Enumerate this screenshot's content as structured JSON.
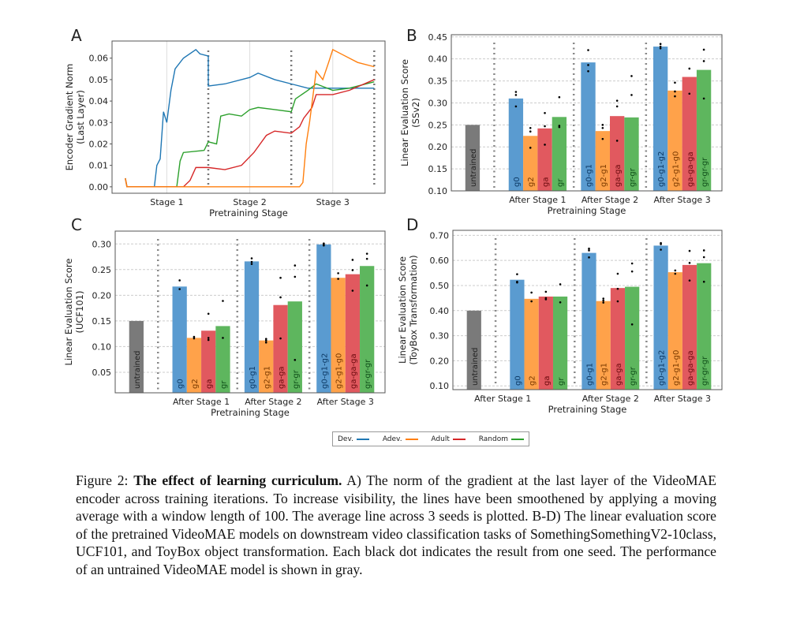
{
  "colors": {
    "line_blue": "#1f77b4",
    "line_orange": "#ff7f0e",
    "line_red": "#d62728",
    "line_green": "#2ca02c",
    "bar_blue": "#5a9bd0",
    "bar_orange": "#ffa24a",
    "bar_red": "#e1595f",
    "bar_green": "#5eb65e",
    "bar_gray": "#7a7a7a"
  },
  "legend": [
    {
      "label": "Dev.",
      "color": "#1f77b4"
    },
    {
      "label": "Adev.",
      "color": "#ff7f0e"
    },
    {
      "label": "Adult",
      "color": "#d62728"
    },
    {
      "label": "Random",
      "color": "#2ca02c"
    }
  ],
  "chart_data": [
    {
      "panel": "A",
      "type": "line",
      "xlabel": "Pretraining Stage",
      "ylabel": [
        "Encoder Gradient Norm",
        "(Last Layer)"
      ],
      "xticks": [
        {
          "x": 0.5,
          "label": "Stage 1"
        },
        {
          "x": 1.5,
          "label": "Stage 2"
        },
        {
          "x": 2.5,
          "label": "Stage 3"
        }
      ],
      "stage_boundaries": [
        1,
        2,
        3
      ],
      "xlim": [
        -0.16,
        3.13
      ],
      "ylim": [
        -0.003,
        0.068
      ],
      "yticks": [
        0.0,
        0.01,
        0.02,
        0.03,
        0.04,
        0.05,
        0.06
      ],
      "series": [
        {
          "legend": "Dev.",
          "color": "#1f77b4",
          "points": [
            [
              0,
              0.004
            ],
            [
              0.02,
              0
            ],
            [
              0.35,
              0
            ],
            [
              0.38,
              0.01
            ],
            [
              0.42,
              0.013
            ],
            [
              0.46,
              0.035
            ],
            [
              0.5,
              0.03
            ],
            [
              0.55,
              0.045
            ],
            [
              0.6,
              0.055
            ],
            [
              0.7,
              0.06
            ],
            [
              0.85,
              0.064
            ],
            [
              0.9,
              0.062
            ],
            [
              1.0,
              0.061
            ],
            [
              1.0,
              0.047
            ],
            [
              1.2,
              0.048
            ],
            [
              1.5,
              0.051
            ],
            [
              1.6,
              0.053
            ],
            [
              1.8,
              0.05
            ],
            [
              2.0,
              0.048
            ],
            [
              2.2,
              0.046
            ],
            [
              2.5,
              0.046
            ],
            [
              3.0,
              0.046
            ]
          ]
        },
        {
          "legend": "Random",
          "color": "#2ca02c",
          "points": [
            [
              0,
              0.004
            ],
            [
              0.02,
              0
            ],
            [
              0.62,
              0
            ],
            [
              0.66,
              0.012
            ],
            [
              0.7,
              0.016
            ],
            [
              0.95,
              0.017
            ],
            [
              1.0,
              0.021
            ],
            [
              1.1,
              0.02
            ],
            [
              1.15,
              0.033
            ],
            [
              1.25,
              0.034
            ],
            [
              1.4,
              0.033
            ],
            [
              1.5,
              0.036
            ],
            [
              1.6,
              0.037
            ],
            [
              1.8,
              0.036
            ],
            [
              2.0,
              0.035
            ],
            [
              2.05,
              0.041
            ],
            [
              2.2,
              0.045
            ],
            [
              2.3,
              0.048
            ],
            [
              2.5,
              0.045
            ],
            [
              2.7,
              0.046
            ],
            [
              3.0,
              0.049
            ]
          ]
        },
        {
          "legend": "Adult",
          "color": "#d62728",
          "points": [
            [
              0,
              0.004
            ],
            [
              0.02,
              0
            ],
            [
              0.7,
              0
            ],
            [
              0.78,
              0.003
            ],
            [
              0.85,
              0.009
            ],
            [
              1.0,
              0.009
            ],
            [
              1.2,
              0.008
            ],
            [
              1.4,
              0.01
            ],
            [
              1.55,
              0.016
            ],
            [
              1.7,
              0.024
            ],
            [
              1.8,
              0.026
            ],
            [
              2.0,
              0.025
            ],
            [
              2.1,
              0.028
            ],
            [
              2.15,
              0.032
            ],
            [
              2.25,
              0.037
            ],
            [
              2.3,
              0.043
            ],
            [
              2.5,
              0.043
            ],
            [
              2.7,
              0.045
            ],
            [
              3.0,
              0.05
            ]
          ]
        },
        {
          "legend": "Adev.",
          "color": "#ff7f0e",
          "points": [
            [
              0,
              0.004
            ],
            [
              0.02,
              0
            ],
            [
              2.1,
              0
            ],
            [
              2.14,
              0.002
            ],
            [
              2.18,
              0.02
            ],
            [
              2.22,
              0.03
            ],
            [
              2.27,
              0.045
            ],
            [
              2.3,
              0.054
            ],
            [
              2.38,
              0.05
            ],
            [
              2.45,
              0.058
            ],
            [
              2.5,
              0.064
            ],
            [
              2.6,
              0.062
            ],
            [
              2.8,
              0.058
            ],
            [
              3.0,
              0.056
            ]
          ]
        }
      ]
    },
    {
      "panel": "B",
      "type": "bar",
      "xlabel": "Pretraining Stage",
      "ylabel": [
        "Linear Evaluation Score",
        "(SSv2)"
      ],
      "ylim": [
        0.1,
        0.455
      ],
      "yticks": [
        "0.10",
        "0.15",
        "0.20",
        "0.25",
        "0.30",
        "0.35",
        "0.40",
        "0.45"
      ],
      "untrained": {
        "label": "untrained",
        "value": 0.25
      },
      "groups": [
        {
          "label": "After Stage 1",
          "bars": [
            {
              "label": "g0",
              "value": 0.31,
              "seeds": [
                0.325,
                0.318,
                0.292
              ]
            },
            {
              "label": "g2",
              "value": 0.225,
              "seeds": [
                0.243,
                0.235,
                0.198
              ]
            },
            {
              "label": "ga",
              "value": 0.242,
              "seeds": [
                0.277,
                0.247,
                0.205
              ]
            },
            {
              "label": "gr",
              "value": 0.268,
              "seeds": [
                0.313,
                0.248,
                0.245
              ]
            }
          ]
        },
        {
          "label": "After Stage 2",
          "bars": [
            {
              "label": "g0-g1",
              "value": 0.392,
              "seeds": [
                0.42,
                0.386,
                0.372
              ]
            },
            {
              "label": "g2-g1",
              "value": 0.236,
              "seeds": [
                0.25,
                0.243,
                0.218
              ]
            },
            {
              "label": "ga-ga",
              "value": 0.27,
              "seeds": [
                0.305,
                0.292,
                0.214
              ]
            },
            {
              "label": "gr-gr",
              "value": 0.267,
              "seeds": [
                0.361,
                0.318
              ]
            }
          ]
        },
        {
          "label": "After Stage 3",
          "bars": [
            {
              "label": "g0-g1-g2",
              "value": 0.428,
              "seeds": [
                0.434,
                0.428,
                0.424
              ]
            },
            {
              "label": "g2-g1-g0",
              "value": 0.328,
              "seeds": [
                0.346,
                0.326,
                0.315
              ]
            },
            {
              "label": "ga-ga-ga",
              "value": 0.359,
              "seeds": [
                0.378,
                0.321
              ]
            },
            {
              "label": "gr-gr-gr",
              "value": 0.375,
              "seeds": [
                0.421,
                0.395,
                0.31
              ]
            }
          ]
        }
      ]
    },
    {
      "panel": "C",
      "type": "bar",
      "xlabel": "Pretraining Stage",
      "ylabel": [
        "Linear Evaluation Score",
        "(UCF101)"
      ],
      "ylim": [
        0.01,
        0.325
      ],
      "yticks": [
        "0.05",
        "0.10",
        "0.15",
        "0.20",
        "0.25",
        "0.30"
      ],
      "untrained": {
        "label": "untrained",
        "value": 0.15
      },
      "groups": [
        {
          "label": "After Stage 1",
          "bars": [
            {
              "label": "g0",
              "value": 0.217,
              "seeds": [
                0.229,
                0.212
              ]
            },
            {
              "label": "g2",
              "value": 0.117,
              "seeds": [
                0.119,
                0.116
              ]
            },
            {
              "label": "ga",
              "value": 0.131,
              "seeds": [
                0.164,
                0.117,
                0.113
              ]
            },
            {
              "label": "gr",
              "value": 0.14,
              "seeds": [
                0.189,
                0.117
              ]
            }
          ]
        },
        {
          "label": "After Stage 2",
          "bars": [
            {
              "label": "g0-g1",
              "value": 0.266,
              "seeds": [
                0.272,
                0.265,
                0.261
              ]
            },
            {
              "label": "g2-g1",
              "value": 0.112,
              "seeds": [
                0.115,
                0.112,
                0.108
              ]
            },
            {
              "label": "ga-ga",
              "value": 0.181,
              "seeds": [
                0.234,
                0.196,
                0.116
              ]
            },
            {
              "label": "gr-gr",
              "value": 0.188,
              "seeds": [
                0.258,
                0.236,
                0.074
              ]
            }
          ]
        },
        {
          "label": "After Stage 3",
          "bars": [
            {
              "label": "g0-g1-g2",
              "value": 0.299,
              "seeds": [
                0.301,
                0.299,
                0.297
              ]
            },
            {
              "label": "g2-g1-g0",
              "value": 0.234,
              "seeds": [
                0.243,
                0.232
              ]
            },
            {
              "label": "ga-ga-ga",
              "value": 0.241,
              "seeds": [
                0.269,
                0.249,
                0.209
              ]
            },
            {
              "label": "gr-gr-gr",
              "value": 0.257,
              "seeds": [
                0.281,
                0.271,
                0.219
              ]
            }
          ]
        }
      ]
    },
    {
      "panel": "D",
      "type": "bar",
      "xlabel": "Pretraining Stage",
      "ylabel": [
        "Linear Evaluation Score",
        "(ToyBox Transformation)"
      ],
      "ylim": [
        0.085,
        0.72
      ],
      "yticks": [
        "0.10",
        "0.20",
        "0.30",
        "0.40",
        "0.50",
        "0.60",
        "0.70"
      ],
      "untrained": {
        "label": "untrained",
        "value": 0.4
      },
      "groups": [
        {
          "label": "After Stage 1",
          "bars": [
            {
              "label": "g0",
              "value": 0.523,
              "seeds": [
                0.545,
                0.515,
                0.512
              ]
            },
            {
              "label": "g2",
              "value": 0.447,
              "seeds": [
                0.472,
                0.437
              ]
            },
            {
              "label": "ga",
              "value": 0.456,
              "seeds": [
                0.475,
                0.45,
                0.445
              ]
            },
            {
              "label": "gr",
              "value": 0.456,
              "seeds": [
                0.505,
                0.433
              ]
            }
          ]
        },
        {
          "label": "After Stage 2",
          "bars": [
            {
              "label": "g0-g1",
              "value": 0.63,
              "seeds": [
                0.647,
                0.64,
                0.612
              ]
            },
            {
              "label": "g2-g1",
              "value": 0.438,
              "seeds": [
                0.448,
                0.44,
                0.432
              ]
            },
            {
              "label": "ga-ga",
              "value": 0.49,
              "seeds": [
                0.547,
                0.487,
                0.437
              ]
            },
            {
              "label": "gr-gr",
              "value": 0.495,
              "seeds": [
                0.588,
                0.556,
                0.345
              ]
            }
          ]
        },
        {
          "label": "After Stage 3",
          "bars": [
            {
              "label": "g0-g1-g2",
              "value": 0.659,
              "seeds": [
                0.669,
                0.665,
                0.643
              ]
            },
            {
              "label": "g2-g1-g0",
              "value": 0.553,
              "seeds": [
                0.56,
                0.547
              ]
            },
            {
              "label": "ga-ga-ga",
              "value": 0.582,
              "seeds": [
                0.638,
                0.59,
                0.52
              ]
            },
            {
              "label": "gr-gr-gr",
              "value": 0.589,
              "seeds": [
                0.64,
                0.613,
                0.515
              ]
            }
          ]
        }
      ]
    }
  ],
  "caption": {
    "label": "Figure 2:",
    "bold": "The effect of learning curriculum.",
    "text": "A) The norm of the gradient at the last layer of the VideoMAE encoder across training iterations. To increase visibility, the lines have been smoothened by applying a moving average with a window length of 100. The average line across 3 seeds is plotted. B-D) The linear evaluation score of the pretrained VideoMAE models on downstream video classification tasks of SomethingSomethingV2-10class, UCF101, and ToyBox object transformation. Each black dot indicates the result from one seed. The performance of an untrained VideoMAE model is shown in gray."
  }
}
